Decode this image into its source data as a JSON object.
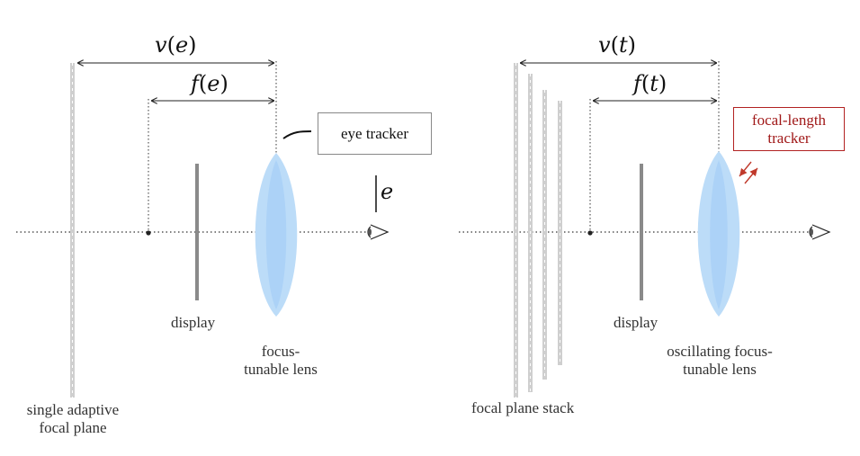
{
  "left_panel": {
    "v_label": {
      "fn": "v",
      "arg": "e"
    },
    "f_label": {
      "fn": "f",
      "arg": "e"
    },
    "eye_tracker_label": "eye tracker",
    "e_label": "e",
    "display_label": "display",
    "lens_label_line1": "focus-",
    "lens_label_line2": "tunable lens",
    "plane_label_line1": "single adaptive",
    "plane_label_line2": "focal plane"
  },
  "right_panel": {
    "v_label": {
      "fn": "v",
      "arg": "t"
    },
    "f_label": {
      "fn": "f",
      "arg": "t"
    },
    "tracker_label_line1": "focal-length",
    "tracker_label_line2": "tracker",
    "display_label": "display",
    "lens_label_line1": "oscillating focus-",
    "lens_label_line2": "tunable lens",
    "stack_label": "focal plane stack"
  },
  "colors": {
    "lens_fill": "#bcdcf8",
    "lens_core": "#9fcaf4",
    "focal_plane": "#c8c8c8",
    "display": "#8a8a8a",
    "tracker_box_border": "#b22222",
    "tracker_text": "#a01818",
    "eye_tracker_box_border": "#888888",
    "arrow": "#c0392b"
  },
  "icons": [
    "eye-icon",
    "eye-icon",
    "double-arrow-icon"
  ]
}
